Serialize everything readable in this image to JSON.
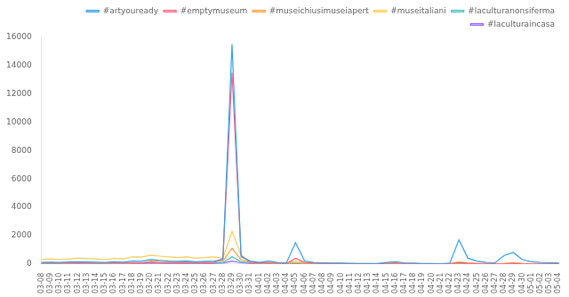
{
  "chart_data": {
    "type": "line",
    "categories": [
      "03-08",
      "03-09",
      "03-10",
      "03-11",
      "03-12",
      "03-13",
      "03-14",
      "03-15",
      "03-16",
      "03-17",
      "03-18",
      "03-19",
      "03-20",
      "03-21",
      "03-22",
      "03-23",
      "03-24",
      "03-25",
      "03-26",
      "03-27",
      "03-28",
      "03-29",
      "03-30",
      "03-31",
      "04-01",
      "04-02",
      "04-03",
      "04-04",
      "04-05",
      "04-06",
      "04-07",
      "04-08",
      "04-09",
      "04-10",
      "04-11",
      "04-12",
      "04-13",
      "04-14",
      "04-15",
      "04-16",
      "04-17",
      "04-18",
      "04-19",
      "04-20",
      "04-21",
      "04-22",
      "04-23",
      "04-24",
      "04-25",
      "04-26",
      "04-27",
      "04-28",
      "04-29",
      "04-30",
      "05-01",
      "05-02",
      "05-03",
      "05-04"
    ],
    "series": [
      {
        "name": "#artyouready",
        "values": [
          100,
          120,
          100,
          130,
          150,
          130,
          120,
          100,
          150,
          120,
          200,
          180,
          300,
          250,
          200,
          180,
          200,
          150,
          180,
          200,
          300,
          15500,
          500,
          200,
          100,
          200,
          100,
          80,
          1500,
          200,
          100,
          80,
          60,
          50,
          40,
          30,
          25,
          20,
          100,
          150,
          80,
          50,
          30,
          20,
          15,
          50,
          1700,
          400,
          200,
          100,
          80,
          600,
          800,
          300,
          150,
          100,
          80,
          70
        ]
      },
      {
        "name": "#emptymuseum",
        "values": [
          50,
          60,
          50,
          60,
          70,
          60,
          55,
          50,
          60,
          55,
          80,
          70,
          100,
          90,
          80,
          70,
          80,
          60,
          70,
          80,
          400,
          13500,
          600,
          100,
          50,
          80,
          40,
          30,
          400,
          100,
          40,
          30,
          25,
          20,
          15,
          12,
          10,
          8,
          30,
          50,
          25,
          15,
          10,
          8,
          6,
          15,
          100,
          50,
          30,
          15,
          10,
          20,
          50,
          20,
          10,
          8,
          6,
          5
        ]
      },
      {
        "name": "#museichiusimuseiapert",
        "values": [
          30,
          35,
          30,
          35,
          40,
          35,
          32,
          30,
          35,
          32,
          50,
          45,
          200,
          180,
          160,
          140,
          160,
          120,
          140,
          160,
          200,
          1100,
          300,
          80,
          30,
          50,
          25,
          20,
          80,
          30,
          20,
          15,
          12,
          10,
          8,
          6,
          5,
          4,
          20,
          30,
          15,
          10,
          7,
          5,
          4,
          10,
          60,
          30,
          15,
          8,
          6,
          12,
          30,
          12,
          6,
          5,
          4,
          3
        ]
      },
      {
        "name": "#museitaliani",
        "values": [
          300,
          350,
          300,
          350,
          400,
          380,
          350,
          300,
          380,
          350,
          500,
          480,
          600,
          550,
          500,
          450,
          500,
          400,
          450,
          500,
          400,
          2300,
          600,
          200,
          100,
          150,
          80,
          60,
          200,
          100,
          60,
          50,
          40,
          35,
          30,
          25,
          20,
          15,
          50,
          80,
          40,
          25,
          15,
          10,
          8,
          20,
          150,
          80,
          40,
          20,
          15,
          30,
          80,
          30,
          15,
          12,
          10,
          8
        ]
      },
      {
        "name": "#laculturanonsiferma",
        "values": [
          20,
          25,
          20,
          25,
          30,
          25,
          22,
          20,
          25,
          22,
          40,
          35,
          80,
          70,
          60,
          55,
          60,
          50,
          55,
          60,
          100,
          500,
          150,
          50,
          20,
          30,
          15,
          12,
          50,
          20,
          12,
          10,
          8,
          6,
          5,
          4,
          3,
          3,
          10,
          15,
          8,
          5,
          3,
          2,
          2,
          5,
          30,
          15,
          8,
          4,
          3,
          6,
          15,
          6,
          3,
          2,
          2,
          2
        ]
      },
      {
        "name": "#laculturaincasa",
        "values": [
          10,
          12,
          10,
          12,
          15,
          12,
          11,
          10,
          12,
          11,
          20,
          18,
          40,
          35,
          30,
          28,
          30,
          25,
          28,
          30,
          50,
          200,
          80,
          25,
          10,
          15,
          8,
          6,
          25,
          10,
          6,
          5,
          4,
          3,
          3,
          2,
          2,
          2,
          5,
          8,
          4,
          3,
          2,
          2,
          2,
          3,
          15,
          8,
          4,
          2,
          2,
          3,
          8,
          3,
          2,
          2,
          2,
          2
        ]
      }
    ],
    "ylim": [
      0,
      16000
    ],
    "yticks": [
      0,
      2000,
      4000,
      6000,
      8000,
      10000,
      12000,
      14000,
      16000
    ],
    "grid": false,
    "legend": "upper right"
  }
}
